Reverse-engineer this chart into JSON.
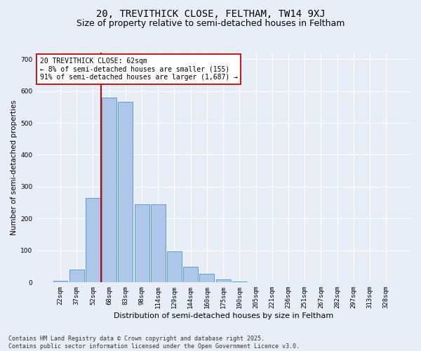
{
  "title1": "20, TREVITHICK CLOSE, FELTHAM, TW14 9XJ",
  "title2": "Size of property relative to semi-detached houses in Feltham",
  "xlabel": "Distribution of semi-detached houses by size in Feltham",
  "ylabel": "Number of semi-detached properties",
  "categories": [
    "22sqm",
    "37sqm",
    "52sqm",
    "68sqm",
    "83sqm",
    "98sqm",
    "114sqm",
    "129sqm",
    "144sqm",
    "160sqm",
    "175sqm",
    "190sqm",
    "205sqm",
    "221sqm",
    "236sqm",
    "251sqm",
    "267sqm",
    "282sqm",
    "297sqm",
    "313sqm",
    "328sqm"
  ],
  "values": [
    5,
    40,
    265,
    580,
    565,
    245,
    245,
    98,
    50,
    28,
    10,
    3,
    1,
    0,
    0,
    0,
    0,
    0,
    0,
    0,
    0
  ],
  "bar_color": "#aec6e8",
  "bar_edge_color": "#5a9fd4",
  "vline_color": "#cc0000",
  "annotation_line1": "20 TREVITHICK CLOSE: 62sqm",
  "annotation_line2": "← 8% of semi-detached houses are smaller (155)",
  "annotation_line3": "91% of semi-detached houses are larger (1,687) →",
  "annotation_box_color": "white",
  "annotation_box_edge": "#cc0000",
  "ylim_max": 720,
  "yticks": [
    0,
    100,
    200,
    300,
    400,
    500,
    600,
    700
  ],
  "bg_color": "#e8eef8",
  "footer1": "Contains HM Land Registry data © Crown copyright and database right 2025.",
  "footer2": "Contains public sector information licensed under the Open Government Licence v3.0.",
  "title1_fontsize": 10,
  "title2_fontsize": 9,
  "xlabel_fontsize": 8,
  "ylabel_fontsize": 7.5,
  "tick_fontsize": 6.5,
  "annotation_fontsize": 7,
  "footer_fontsize": 6
}
